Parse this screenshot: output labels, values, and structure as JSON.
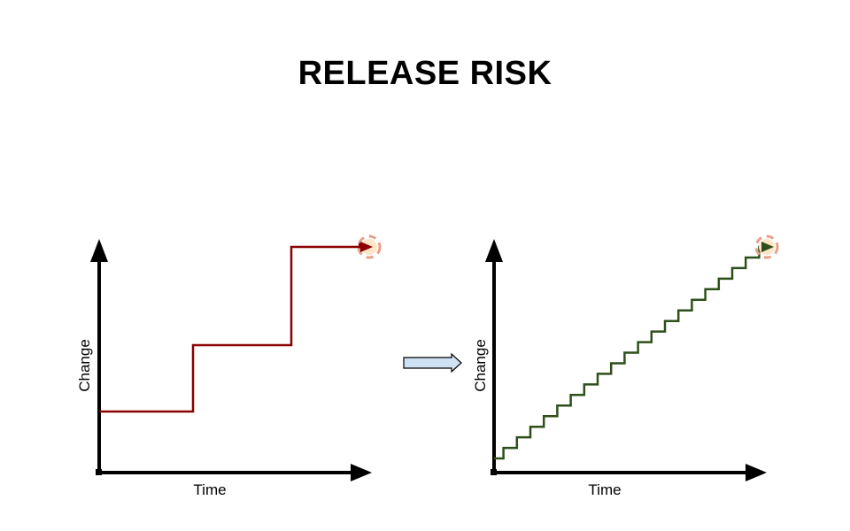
{
  "title": "RELEASE RISK",
  "colors": {
    "axis": "#000000",
    "left_line": "#8b0000",
    "right_line": "#2f4f1a",
    "arrow_fill": "#cfe2f3",
    "arrow_stroke": "#000000",
    "burst_fill": "#fde6c8",
    "burst_dash": "#e8a08c"
  },
  "left_chart": {
    "ylabel": "Change",
    "xlabel": "Time",
    "steps": 3
  },
  "right_chart": {
    "ylabel": "Change",
    "xlabel": "Time",
    "steps": 20
  },
  "transition_arrow": {
    "icon": "right-block-arrow"
  },
  "risk_marker": {
    "icon": "explosion-burst-icon"
  }
}
